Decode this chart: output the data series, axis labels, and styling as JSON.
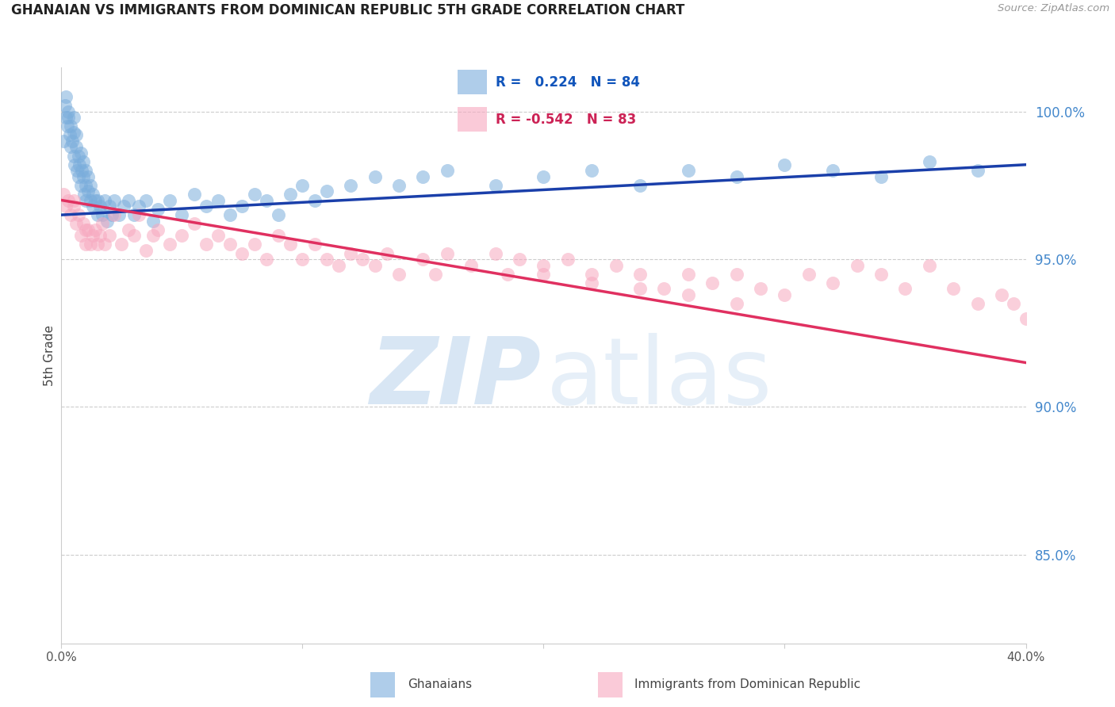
{
  "title": "GHANAIAN VS IMMIGRANTS FROM DOMINICAN REPUBLIC 5TH GRADE CORRELATION CHART",
  "source": "Source: ZipAtlas.com",
  "ylabel": "5th Grade",
  "blue_R": 0.224,
  "blue_N": 84,
  "pink_R": -0.542,
  "pink_N": 83,
  "blue_color": "#7AADDC",
  "pink_color": "#F7A8BF",
  "blue_line_color": "#1A3FAA",
  "pink_line_color": "#E03060",
  "legend_label_blue": "Ghanaians",
  "legend_label_pink": "Immigrants from Dominican Republic",
  "xmin": 0.0,
  "xmax": 40.0,
  "ymin": 82.0,
  "ymax": 101.5,
  "right_yticks": [
    85.0,
    90.0,
    95.0,
    100.0
  ],
  "right_ytick_labels": [
    "85.0%",
    "90.0%",
    "95.0%",
    "100.0%"
  ],
  "blue_x": [
    0.1,
    0.15,
    0.2,
    0.2,
    0.25,
    0.3,
    0.3,
    0.35,
    0.4,
    0.4,
    0.45,
    0.5,
    0.5,
    0.5,
    0.55,
    0.6,
    0.6,
    0.65,
    0.7,
    0.7,
    0.75,
    0.8,
    0.8,
    0.85,
    0.9,
    0.9,
    0.95,
    1.0,
    1.0,
    1.0,
    1.1,
    1.1,
    1.2,
    1.2,
    1.3,
    1.3,
    1.4,
    1.5,
    1.5,
    1.6,
    1.7,
    1.8,
    1.9,
    2.0,
    2.1,
    2.2,
    2.4,
    2.6,
    2.8,
    3.0,
    3.2,
    3.5,
    3.8,
    4.0,
    4.5,
    5.0,
    5.5,
    6.0,
    6.5,
    7.0,
    7.5,
    8.0,
    8.5,
    9.0,
    9.5,
    10.0,
    10.5,
    11.0,
    12.0,
    13.0,
    14.0,
    15.0,
    16.0,
    18.0,
    20.0,
    22.0,
    24.0,
    26.0,
    28.0,
    30.0,
    32.0,
    34.0,
    36.0,
    38.0
  ],
  "blue_y": [
    99.0,
    100.2,
    99.8,
    100.5,
    99.5,
    99.8,
    100.0,
    99.2,
    99.5,
    98.8,
    99.0,
    99.3,
    98.5,
    99.8,
    98.2,
    98.8,
    99.2,
    98.0,
    98.5,
    97.8,
    98.2,
    98.6,
    97.5,
    98.0,
    97.8,
    98.3,
    97.2,
    97.5,
    98.0,
    97.0,
    97.3,
    97.8,
    97.0,
    97.5,
    96.8,
    97.2,
    97.0,
    96.5,
    97.0,
    96.8,
    96.5,
    97.0,
    96.3,
    96.8,
    96.5,
    97.0,
    96.5,
    96.8,
    97.0,
    96.5,
    96.8,
    97.0,
    96.3,
    96.7,
    97.0,
    96.5,
    97.2,
    96.8,
    97.0,
    96.5,
    96.8,
    97.2,
    97.0,
    96.5,
    97.2,
    97.5,
    97.0,
    97.3,
    97.5,
    97.8,
    97.5,
    97.8,
    98.0,
    97.5,
    97.8,
    98.0,
    97.5,
    98.0,
    97.8,
    98.2,
    98.0,
    97.8,
    98.3,
    98.0
  ],
  "pink_x": [
    0.1,
    0.2,
    0.3,
    0.4,
    0.5,
    0.5,
    0.6,
    0.7,
    0.8,
    0.9,
    1.0,
    1.0,
    1.1,
    1.2,
    1.3,
    1.4,
    1.5,
    1.6,
    1.7,
    1.8,
    2.0,
    2.2,
    2.5,
    2.8,
    3.0,
    3.2,
    3.5,
    3.8,
    4.0,
    4.5,
    5.0,
    5.5,
    6.0,
    6.5,
    7.0,
    7.5,
    8.0,
    8.5,
    9.0,
    9.5,
    10.0,
    10.5,
    11.0,
    11.5,
    12.0,
    12.5,
    13.0,
    13.5,
    14.0,
    15.0,
    15.5,
    16.0,
    17.0,
    18.0,
    18.5,
    19.0,
    20.0,
    21.0,
    22.0,
    23.0,
    24.0,
    25.0,
    26.0,
    27.0,
    28.0,
    29.0,
    30.0,
    31.0,
    32.0,
    33.0,
    34.0,
    35.0,
    36.0,
    37.0,
    38.0,
    39.0,
    39.5,
    40.0,
    20.0,
    22.0,
    24.0,
    26.0,
    28.0
  ],
  "pink_y": [
    97.2,
    96.8,
    97.0,
    96.5,
    96.8,
    97.0,
    96.2,
    96.5,
    95.8,
    96.2,
    96.0,
    95.5,
    96.0,
    95.5,
    95.8,
    96.0,
    95.5,
    95.8,
    96.2,
    95.5,
    95.8,
    96.5,
    95.5,
    96.0,
    95.8,
    96.5,
    95.3,
    95.8,
    96.0,
    95.5,
    95.8,
    96.2,
    95.5,
    95.8,
    95.5,
    95.2,
    95.5,
    95.0,
    95.8,
    95.5,
    95.0,
    95.5,
    95.0,
    94.8,
    95.2,
    95.0,
    94.8,
    95.2,
    94.5,
    95.0,
    94.5,
    95.2,
    94.8,
    95.2,
    94.5,
    95.0,
    94.5,
    95.0,
    94.2,
    94.8,
    94.5,
    94.0,
    94.5,
    94.2,
    94.5,
    94.0,
    93.8,
    94.5,
    94.2,
    94.8,
    94.5,
    94.0,
    94.8,
    94.0,
    93.5,
    93.8,
    93.5,
    93.0,
    94.8,
    94.5,
    94.0,
    93.8,
    93.5
  ]
}
